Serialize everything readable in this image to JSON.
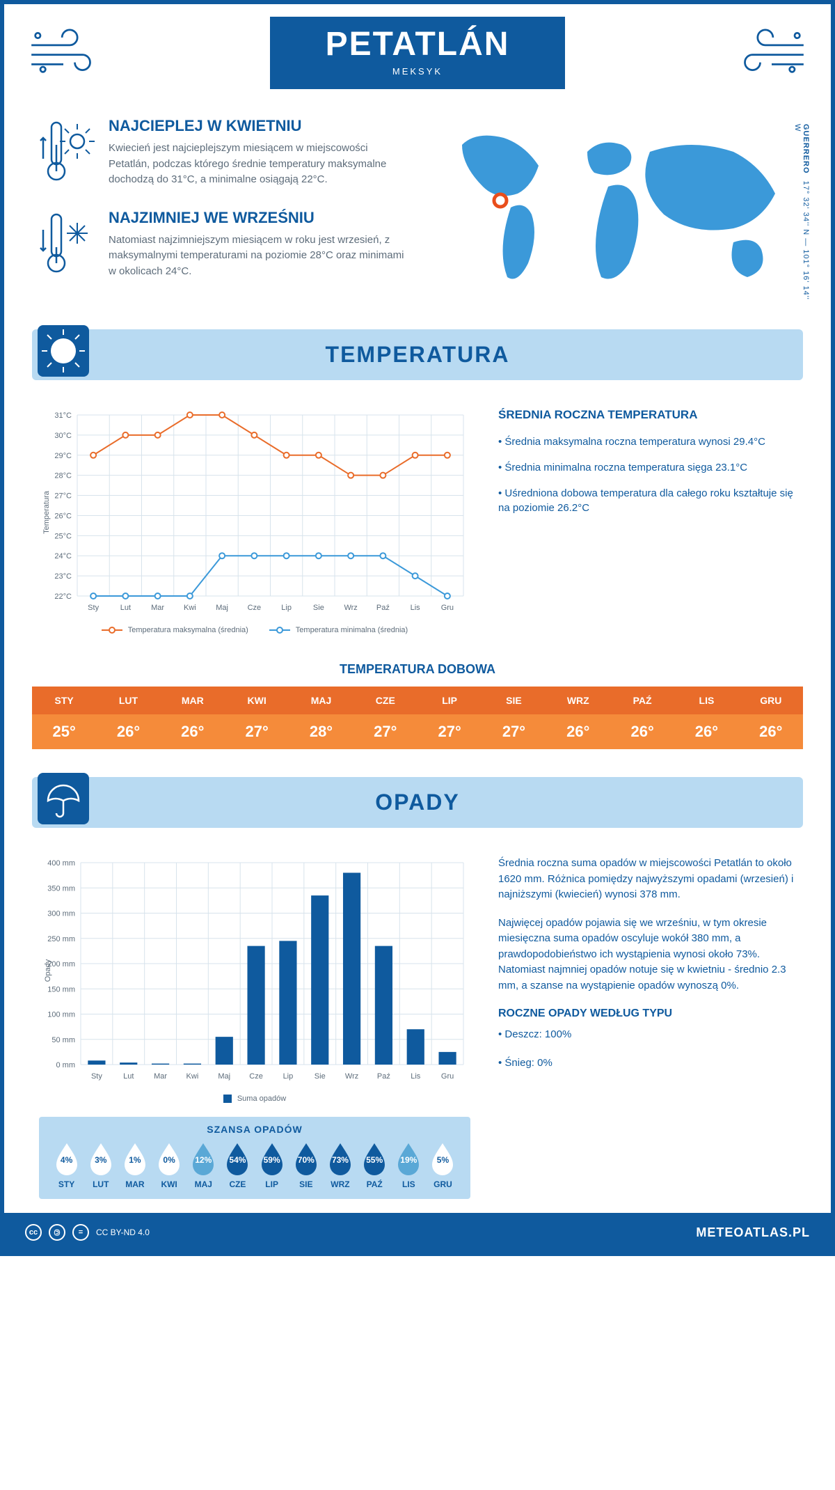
{
  "colors": {
    "primary": "#0f5a9e",
    "light": "#b8daf2",
    "accent_orange": "#e96c2a",
    "accent_orange_alt": "#f58b3a",
    "accent_blue": "#3b99d9",
    "marker_red": "#e94e1b",
    "text_muted": "#5d6c7a",
    "grid": "#d7e3ec",
    "white": "#ffffff"
  },
  "header": {
    "city": "PETATLÁN",
    "country": "MEKSYK"
  },
  "coords": {
    "region": "GUERRERO",
    "text": "17° 32' 34'' N — 101° 16' 14'' W"
  },
  "intro": {
    "hot": {
      "title": "NAJCIEPLEJ W KWIETNIU",
      "text": "Kwiecień jest najcieplejszym miesiącem w miejscowości Petatlán, podczas którego średnie temperatury maksymalne dochodzą do 31°C, a minimalne osiągają 22°C."
    },
    "cold": {
      "title": "NAJZIMNIEJ WE WRZEŚNIU",
      "text": "Natomiast najzimniejszym miesiącem w roku jest wrzesień, z maksymalnymi temperaturami na poziomie 28°C oraz minimami w okolicach 24°C."
    }
  },
  "months": [
    "Sty",
    "Lut",
    "Mar",
    "Kwi",
    "Maj",
    "Cze",
    "Lip",
    "Sie",
    "Wrz",
    "Paź",
    "Lis",
    "Gru"
  ],
  "months_upper": [
    "STY",
    "LUT",
    "MAR",
    "KWI",
    "MAJ",
    "CZE",
    "LIP",
    "SIE",
    "WRZ",
    "PAŹ",
    "LIS",
    "GRU"
  ],
  "temperature": {
    "section_title": "TEMPERATURA",
    "axis_label": "Temperatura",
    "ylim": [
      22,
      31
    ],
    "yticks": [
      22,
      23,
      24,
      25,
      26,
      27,
      28,
      29,
      30,
      31
    ],
    "max_series": [
      29,
      30,
      30,
      31,
      31,
      30,
      29,
      29,
      28,
      28,
      29,
      29
    ],
    "min_series": [
      22,
      22,
      22,
      22,
      24,
      24,
      24,
      24,
      24,
      24,
      23,
      22
    ],
    "max_color": "#e96c2a",
    "min_color": "#3b99d9",
    "legend_max": "Temperatura maksymalna (średnia)",
    "legend_min": "Temperatura minimalna (średnia)",
    "right": {
      "title": "ŚREDNIA ROCZNA TEMPERATURA",
      "b1": "• Średnia maksymalna roczna temperatura wynosi 29.4°C",
      "b2": "• Średnia minimalna roczna temperatura sięga 23.1°C",
      "b3": "• Uśredniona dobowa temperatura dla całego roku kształtuje się na poziomie 26.2°C"
    }
  },
  "daily": {
    "title": "TEMPERATURA DOBOWA",
    "values": [
      "25°",
      "26°",
      "26°",
      "27°",
      "28°",
      "27°",
      "27°",
      "27°",
      "26°",
      "26°",
      "26°",
      "26°"
    ],
    "head_bg": "#e96c2a",
    "val_bg": "#f58b3a"
  },
  "rain": {
    "section_title": "OPADY",
    "axis_label": "Opady",
    "ylim": [
      0,
      400
    ],
    "yticks": [
      0,
      50,
      100,
      150,
      200,
      250,
      300,
      350,
      400
    ],
    "values": [
      8,
      4,
      2,
      2,
      55,
      235,
      245,
      335,
      380,
      235,
      70,
      25
    ],
    "bar_color": "#0f5a9e",
    "legend": "Suma opadów",
    "right_p1": "Średnia roczna suma opadów w miejscowości Petatlán to około 1620 mm. Różnica pomiędzy najwyższymi opadami (wrzesień) i najniższymi (kwiecień) wynosi 378 mm.",
    "right_p2": "Najwięcej opadów pojawia się we wrześniu, w tym okresie miesięczna suma opadów oscyluje wokół 380 mm, a prawdopodobieństwo ich wystąpienia wynosi około 73%. Natomiast najmniej opadów notuje się w kwietniu - średnio 2.3 mm, a szanse na wystąpienie opadów wynoszą 0%.",
    "type_title": "ROCZNE OPADY WEDŁUG TYPU",
    "type_b1": "• Deszcz: 100%",
    "type_b2": "• Śnieg: 0%"
  },
  "chance": {
    "title": "SZANSA OPADÓW",
    "values": [
      4,
      3,
      1,
      0,
      12,
      54,
      59,
      70,
      73,
      55,
      19,
      5
    ],
    "low_fill": "#ffffff",
    "low_text": "#0f5a9e",
    "mid_fill": "#5aa8d6",
    "mid_text": "#ffffff",
    "high_fill": "#0f5a9e",
    "high_text": "#ffffff"
  },
  "footer": {
    "license": "CC BY-ND 4.0",
    "site": "METEOATLAS.PL"
  }
}
